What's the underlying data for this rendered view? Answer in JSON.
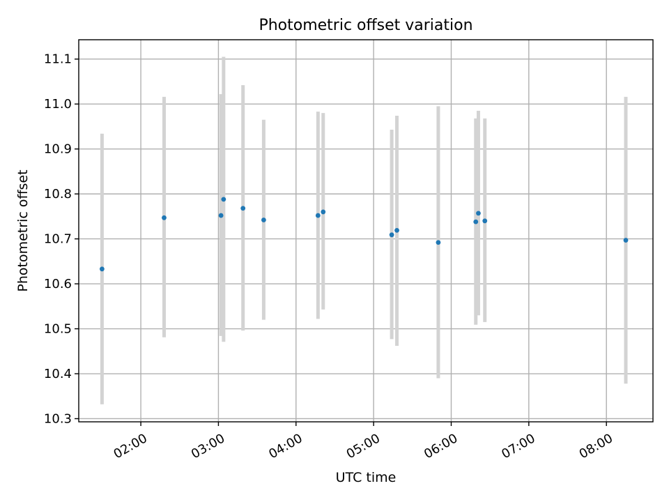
{
  "chart_data": {
    "type": "scatter",
    "title": "Photometric offset variation",
    "xlabel": "UTC time",
    "ylabel": "Photometric offset",
    "xlim": [
      "01:12",
      "08:36"
    ],
    "ylim": [
      10.293,
      11.143
    ],
    "x_ticks": [
      "02:00",
      "03:00",
      "04:00",
      "05:00",
      "06:00",
      "07:00",
      "08:00"
    ],
    "y_ticks": [
      10.3,
      10.4,
      10.5,
      10.6,
      10.7,
      10.8,
      10.9,
      11.0,
      11.1
    ],
    "y_tick_labels": [
      "10.3",
      "10.4",
      "10.5",
      "10.6",
      "10.7",
      "10.8",
      "10.9",
      "11.0",
      "11.1"
    ],
    "grid": true,
    "marker_color": "#1f77b4",
    "errorbar_color": "#d3d3d3",
    "points": [
      {
        "time": "01:30",
        "value": 10.633,
        "low": 10.332,
        "high": 10.934
      },
      {
        "time": "02:18",
        "value": 10.747,
        "low": 10.481,
        "high": 11.016
      },
      {
        "time": "03:02",
        "value": 10.752,
        "low": 10.484,
        "high": 11.022
      },
      {
        "time": "03:04",
        "value": 10.788,
        "low": 10.471,
        "high": 11.105
      },
      {
        "time": "03:19",
        "value": 10.768,
        "low": 10.496,
        "high": 11.042
      },
      {
        "time": "03:35",
        "value": 10.742,
        "low": 10.52,
        "high": 10.965
      },
      {
        "time": "04:17",
        "value": 10.752,
        "low": 10.522,
        "high": 10.983
      },
      {
        "time": "04:21",
        "value": 10.76,
        "low": 10.543,
        "high": 10.98
      },
      {
        "time": "05:14",
        "value": 10.709,
        "low": 10.477,
        "high": 10.943
      },
      {
        "time": "05:18",
        "value": 10.719,
        "low": 10.462,
        "high": 10.974
      },
      {
        "time": "05:50",
        "value": 10.692,
        "low": 10.39,
        "high": 10.995
      },
      {
        "time": "06:19",
        "value": 10.738,
        "low": 10.509,
        "high": 10.968
      },
      {
        "time": "06:21",
        "value": 10.757,
        "low": 10.53,
        "high": 10.985
      },
      {
        "time": "06:26",
        "value": 10.74,
        "low": 10.515,
        "high": 10.968
      },
      {
        "time": "08:15",
        "value": 10.697,
        "low": 10.378,
        "high": 11.016
      }
    ]
  }
}
